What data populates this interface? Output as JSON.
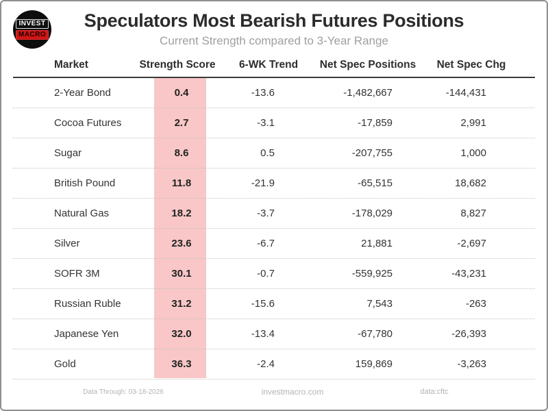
{
  "logo": {
    "line1": "INVEST",
    "line2": "MACRO"
  },
  "header": {
    "title": "Speculators Most Bearish Futures Positions",
    "subtitle": "Current Strength compared to 3-Year Range"
  },
  "chart_data": {
    "type": "table",
    "title": "Speculators Most Bearish Futures Positions",
    "subtitle": "Current Strength compared to 3-Year Range",
    "columns": [
      "Market",
      "Strength Score",
      "6-WK Trend",
      "Net Spec Positions",
      "Net Spec Chg"
    ],
    "highlight_column": "Strength Score",
    "rows": [
      {
        "market": "2-Year Bond",
        "strength_score": "0.4",
        "trend_6wk": "-13.6",
        "net_spec_positions": "-1,482,667",
        "net_spec_chg": "-144,431"
      },
      {
        "market": "Cocoa Futures",
        "strength_score": "2.7",
        "trend_6wk": "-3.1",
        "net_spec_positions": "-17,859",
        "net_spec_chg": "2,991"
      },
      {
        "market": "Sugar",
        "strength_score": "8.6",
        "trend_6wk": "0.5",
        "net_spec_positions": "-207,755",
        "net_spec_chg": "1,000"
      },
      {
        "market": "British Pound",
        "strength_score": "11.8",
        "trend_6wk": "-21.9",
        "net_spec_positions": "-65,515",
        "net_spec_chg": "18,682"
      },
      {
        "market": "Natural Gas",
        "strength_score": "18.2",
        "trend_6wk": "-3.7",
        "net_spec_positions": "-178,029",
        "net_spec_chg": "8,827"
      },
      {
        "market": "Silver",
        "strength_score": "23.6",
        "trend_6wk": "-6.7",
        "net_spec_positions": "21,881",
        "net_spec_chg": "-2,697"
      },
      {
        "market": "SOFR 3M",
        "strength_score": "30.1",
        "trend_6wk": "-0.7",
        "net_spec_positions": "-559,925",
        "net_spec_chg": "-43,231"
      },
      {
        "market": "Russian Ruble",
        "strength_score": "31.2",
        "trend_6wk": "-15.6",
        "net_spec_positions": "7,543",
        "net_spec_chg": "-263"
      },
      {
        "market": "Japanese Yen",
        "strength_score": "32.0",
        "trend_6wk": "-13.4",
        "net_spec_positions": "-67,780",
        "net_spec_chg": "-26,393"
      },
      {
        "market": "Gold",
        "strength_score": "36.3",
        "trend_6wk": "-2.4",
        "net_spec_positions": "159,869",
        "net_spec_chg": "-3,263"
      }
    ]
  },
  "footer": {
    "data_through": "Data Through: 03-18-2026",
    "site": "investmacro.com",
    "source": "data:cftc"
  },
  "colors": {
    "highlight_pink": "#f9c7c7",
    "logo_red": "#cf1515",
    "title_text": "#2b2b2b",
    "subtitle_text": "#9f9f9f"
  }
}
